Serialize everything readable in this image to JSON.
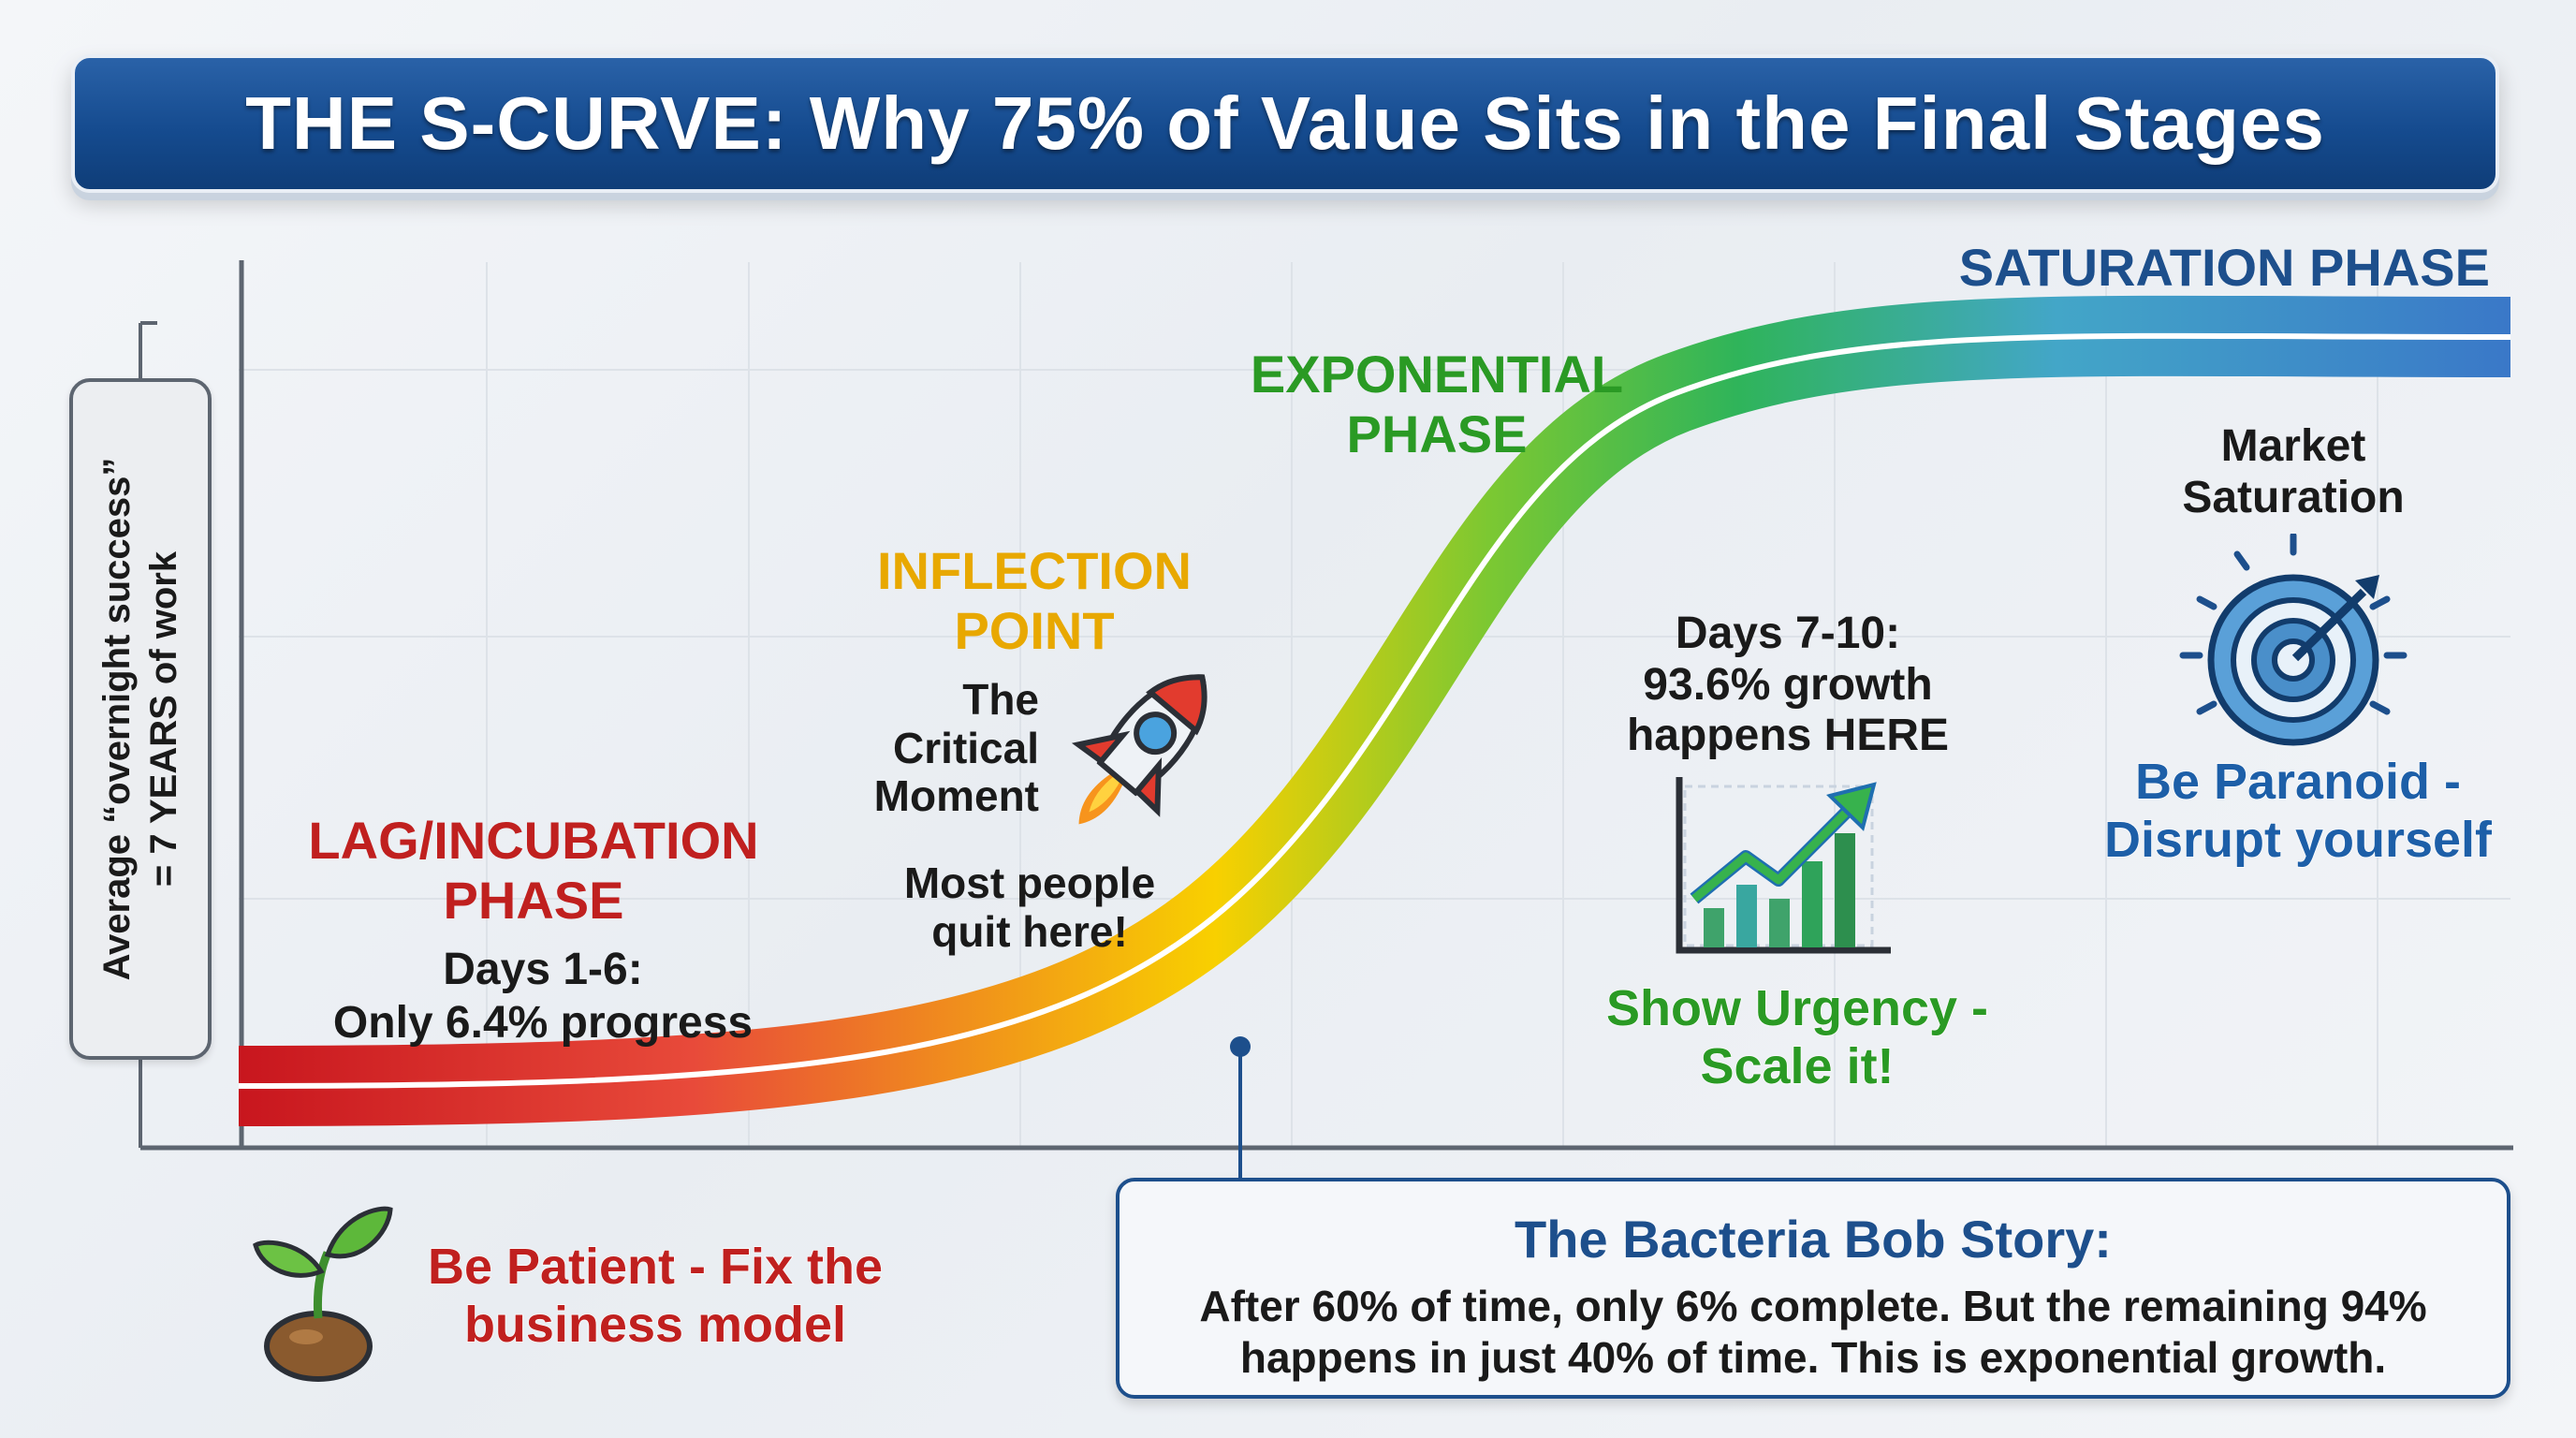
{
  "title": "THE S-CURVE: Why 75% of Value Sits in the Final Stages",
  "y_axis_note": {
    "line1": "Average “overnight success”",
    "line2": "= 7 YEARS of work"
  },
  "phases": {
    "lag": {
      "line1": "LAG/INCUBATION",
      "line2": "PHASE",
      "color": "#c0201f"
    },
    "inflection": {
      "line1": "INFLECTION",
      "line2": "POINT",
      "color": "#e8a800"
    },
    "exponential": {
      "line1": "EXPONENTIAL",
      "line2": "PHASE",
      "color": "#2a9a24"
    },
    "saturation": {
      "line1": "SATURATION PHASE",
      "color": "#1d4f8c"
    }
  },
  "lag_detail": {
    "line1": "Days 1-6:",
    "line2": "Only 6.4% progress"
  },
  "inflection_detail": {
    "line1": "The",
    "line2": "Critical",
    "line3": "Moment",
    "quit1": "Most people",
    "quit2": "quit here!"
  },
  "exponential_detail": {
    "line1": "Days 7-10:",
    "line2": "93.6% growth",
    "line3": "happens HERE"
  },
  "saturation_detail": {
    "line1": "Market",
    "line2": "Saturation"
  },
  "advice": {
    "lag": {
      "line1": "Be Patient - Fix the",
      "line2": "business model",
      "color": "#c0201f"
    },
    "exponential": {
      "line1": "Show Urgency -",
      "line2": "Scale it!",
      "color": "#2a9a24"
    },
    "saturation": {
      "line1": "Be Paranoid -",
      "line2": "Disrupt yourself",
      "color": "#1d5fa8"
    }
  },
  "story": {
    "title": "The Bacteria Bob Story:",
    "line1": "After 60% of time, only 6% complete. But the remaining 94%",
    "line2": "happens in just 40% of time. This is exponential growth."
  },
  "icons": [
    "seedling-icon",
    "rocket-icon",
    "growth-chart-icon",
    "target-icon"
  ],
  "curve_colors": [
    "#c8161e",
    "#e84a3a",
    "#f8d000",
    "#3ab54a",
    "#3a8fd0",
    "#3a78c8"
  ]
}
